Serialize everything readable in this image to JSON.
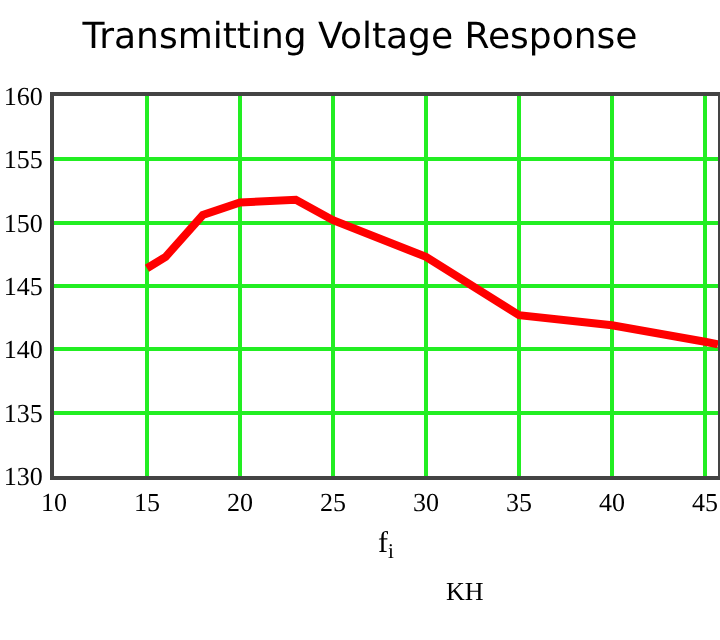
{
  "chart_data": {
    "type": "line",
    "title": "Transmitting Voltage Response",
    "xlabel": "f$_{i}$",
    "annotations": [
      "KH"
    ],
    "x": [
      15,
      16,
      18,
      20,
      23,
      25,
      30,
      35,
      40,
      45,
      45.7
    ],
    "series": [
      {
        "color": "#ff0000",
        "values": [
          146.4,
          147.3,
          150.6,
          151.6,
          151.8,
          150.2,
          147.3,
          142.7,
          141.9,
          140.6,
          140.4
        ]
      }
    ],
    "xlim": [
      10,
      45.7
    ],
    "xticks": [
      10,
      15,
      20,
      25,
      30,
      35,
      40,
      45
    ],
    "ylim": [
      130,
      160
    ],
    "yticks": [
      130,
      135,
      140,
      145,
      150,
      155,
      160
    ],
    "grid": true,
    "legend": false,
    "marker": "none",
    "line_style": "solid"
  }
}
